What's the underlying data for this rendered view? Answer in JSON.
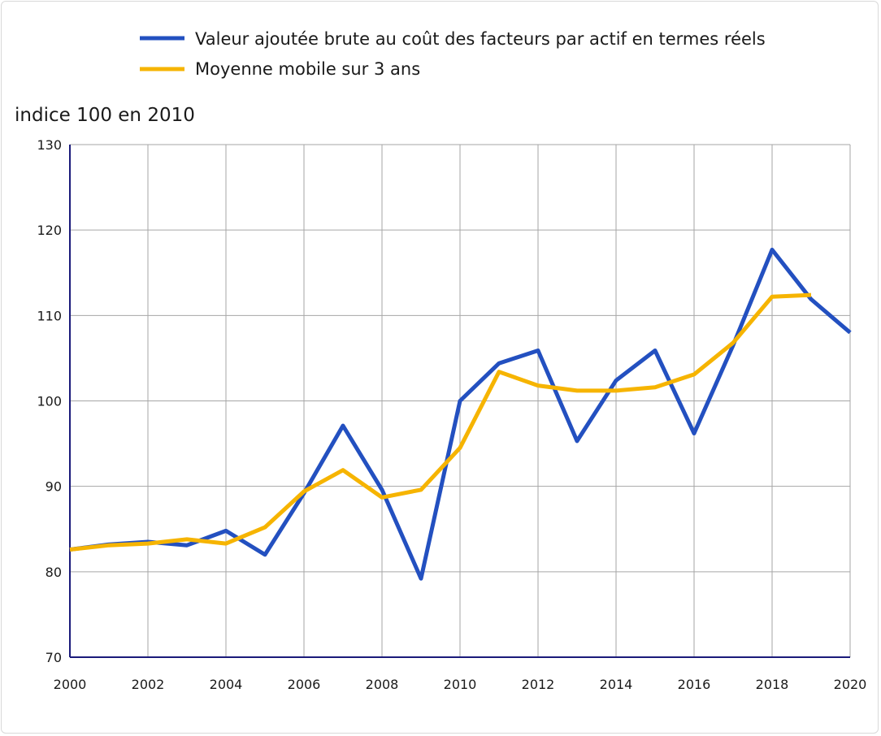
{
  "chart_data": {
    "type": "line",
    "ylabel": "indice 100 en 2010",
    "xlim": [
      2000,
      2020
    ],
    "ylim": [
      70,
      130
    ],
    "grid": true,
    "legend_position": "top",
    "x_ticks": [
      "2000",
      "2002",
      "2004",
      "2006",
      "2008",
      "2010",
      "2012",
      "2014",
      "2016",
      "2018",
      "2020"
    ],
    "y_ticks": [
      "70",
      "80",
      "90",
      "100",
      "110",
      "120",
      "130"
    ],
    "series": [
      {
        "name": "Valeur ajoutée brute au coût des facteurs par actif en termes réels",
        "color": "#2350c0",
        "x": [
          2000,
          2001,
          2002,
          2003,
          2004,
          2005,
          2006,
          2007,
          2008,
          2009,
          2010,
          2011,
          2012,
          2013,
          2014,
          2015,
          2016,
          2017,
          2018,
          2019,
          2020
        ],
        "values": [
          82.6,
          83.2,
          83.5,
          83.1,
          84.8,
          82.0,
          89.2,
          97.1,
          89.6,
          79.2,
          100.0,
          104.4,
          105.9,
          95.3,
          102.4,
          105.9,
          96.2,
          106.5,
          117.7,
          111.9,
          108.0
        ]
      },
      {
        "name": "Moyenne mobile sur 3 ans",
        "color": "#f6b400",
        "x": [
          2000,
          2001,
          2002,
          2003,
          2004,
          2005,
          2006,
          2007,
          2008,
          2009,
          2010,
          2011,
          2012,
          2013,
          2014,
          2015,
          2016,
          2017,
          2018,
          2019
        ],
        "values": [
          82.6,
          83.1,
          83.3,
          83.8,
          83.3,
          85.2,
          89.4,
          91.9,
          88.7,
          89.6,
          94.5,
          103.4,
          101.8,
          101.2,
          101.2,
          101.6,
          103.1,
          106.8,
          112.2,
          112.4
        ]
      }
    ]
  }
}
